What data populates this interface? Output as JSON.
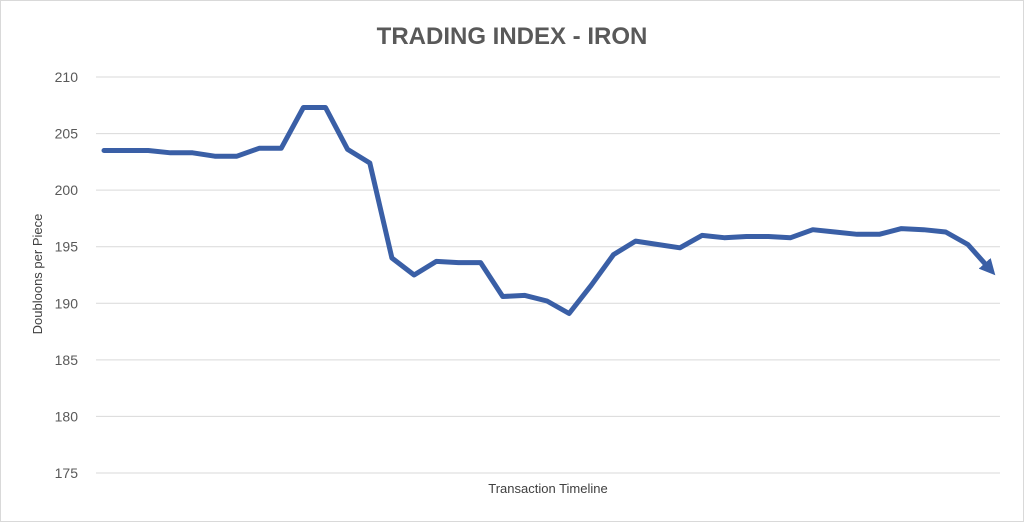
{
  "chart_data": {
    "type": "line",
    "title": "TRADING INDEX - IRON",
    "xlabel": "Transaction Timeline",
    "ylabel": "Doubloons per Piece",
    "ylim": [
      175,
      210
    ],
    "yticks": [
      175,
      180,
      185,
      190,
      195,
      200,
      205,
      210
    ],
    "grid": true,
    "legend": "none",
    "line_color": "#3a5fa6",
    "gridline_color": "#d9d9d9",
    "series": [
      {
        "values": [
          203.5,
          203.5,
          203.5,
          203.3,
          203.3,
          203.0,
          203.0,
          203.7,
          203.7,
          207.3,
          207.3,
          203.6,
          202.4,
          194.0,
          192.5,
          193.7,
          193.6,
          193.6,
          190.6,
          190.7,
          190.2,
          189.1,
          191.6,
          194.3,
          195.5,
          195.2,
          194.9,
          196.0,
          195.8,
          195.9,
          195.9,
          195.8,
          196.5,
          196.3,
          196.1,
          196.1,
          196.6,
          196.5,
          196.3,
          195.2,
          193.0
        ]
      }
    ]
  }
}
